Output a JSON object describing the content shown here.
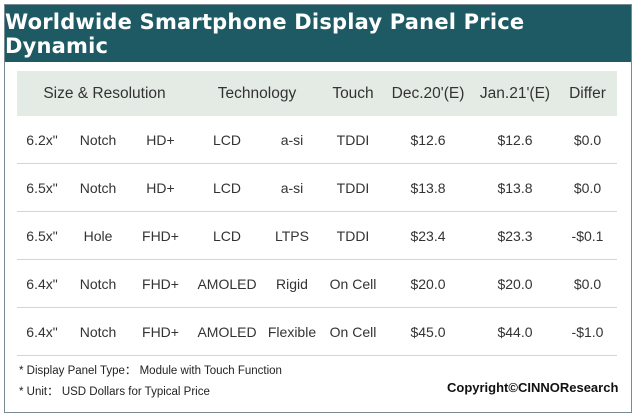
{
  "chart_data": {
    "type": "table",
    "title": "Worldwide Smartphone Display Panel Price Dynamic",
    "header": {
      "size_resolution": "Size & Resolution",
      "technology": "Technology",
      "touch": "Touch",
      "dec": "Dec.20'(E)",
      "jan": "Jan.21'(E)",
      "differ": "Differ"
    },
    "rows": [
      {
        "size": "6.2x\"",
        "screen": "Notch",
        "resolution": "HD+",
        "tech": "LCD",
        "subtype": "a-si",
        "touch": "TDDI",
        "dec": "$12.6",
        "jan": "$12.6",
        "differ": "$0.0"
      },
      {
        "size": "6.5x\"",
        "screen": "Notch",
        "resolution": "HD+",
        "tech": "LCD",
        "subtype": "a-si",
        "touch": "TDDI",
        "dec": "$13.8",
        "jan": "$13.8",
        "differ": "$0.0"
      },
      {
        "size": "6.5x\"",
        "screen": "Hole",
        "resolution": "FHD+",
        "tech": "LCD",
        "subtype": "LTPS",
        "touch": "TDDI",
        "dec": "$23.4",
        "jan": "$23.3",
        "differ": "-$0.1"
      },
      {
        "size": "6.4x\"",
        "screen": "Notch",
        "resolution": "FHD+",
        "tech": "AMOLED",
        "subtype": "Rigid",
        "touch": "On Cell",
        "dec": "$20.0",
        "jan": "$20.0",
        "differ": "$0.0"
      },
      {
        "size": "6.4x\"",
        "screen": "Notch",
        "resolution": "FHD+",
        "tech": "AMOLED",
        "subtype": "Flexible",
        "touch": "On Cell",
        "dec": "$45.0",
        "jan": "$44.0",
        "differ": "-$1.0"
      }
    ]
  },
  "notes": [
    "* Display Panel Type： Module with Touch Function",
    "* Unit： USD Dollars for Typical Price"
  ],
  "copyright": "Copyright©CINNOResearch",
  "colors": {
    "title_bar": "#1e5a63",
    "header_row": "#e3ebe4",
    "text": "#333333"
  }
}
